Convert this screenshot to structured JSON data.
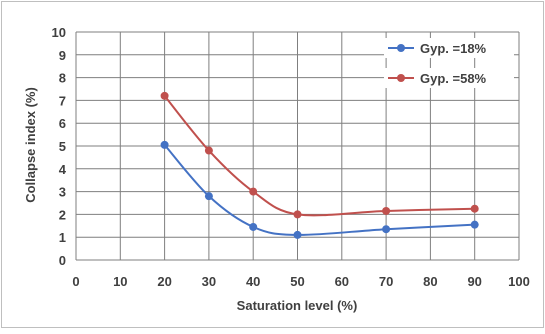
{
  "chart_data": {
    "type": "line",
    "xlabel": "Saturation level (%)",
    "ylabel": "Collapse index (%)",
    "xlim": [
      0,
      100
    ],
    "ylim": [
      0,
      10
    ],
    "xticks": [
      "0",
      "10",
      "20",
      "30",
      "40",
      "50",
      "60",
      "70",
      "80",
      "90",
      "100"
    ],
    "yticks": [
      "0",
      "1",
      "2",
      "3",
      "4",
      "5",
      "6",
      "7",
      "8",
      "9",
      "10"
    ],
    "grid": true,
    "legend_position": "top-right",
    "smooth": true,
    "series": [
      {
        "name": "Gyp. =18%",
        "color": "#4472C4",
        "x": [
          20,
          30,
          40,
          50,
          70,
          90
        ],
        "y": [
          5.05,
          2.8,
          1.45,
          1.1,
          1.35,
          1.55
        ]
      },
      {
        "name": "Gyp. =58%",
        "color": "#C0504D",
        "x": [
          20,
          30,
          40,
          50,
          70,
          90
        ],
        "y": [
          7.2,
          4.8,
          3.0,
          2.0,
          2.15,
          2.25
        ]
      }
    ]
  }
}
